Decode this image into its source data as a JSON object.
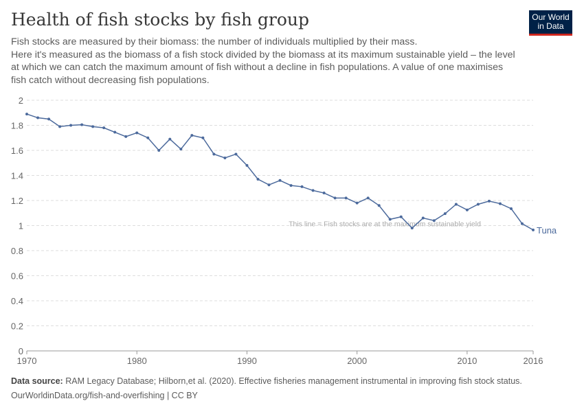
{
  "header": {
    "title": "Health of fish stocks by fish group",
    "subtitle": [
      "Fish stocks are measured by their biomass: the number of individuals multiplied by their mass.",
      "Here it's measured as the biomass of a fish stock divided by the biomass at its maximum sustainable yield – the level at which we can catch the maximum amount of fish without a decline in fish populations. A value of one maximises fish catch without decreasing fish populations."
    ],
    "logo": "Our World in Data"
  },
  "chart_data": {
    "type": "line",
    "title": "Health of fish stocks by fish group",
    "xlim": [
      1970,
      2016
    ],
    "ylim": [
      0,
      2
    ],
    "x_ticks": [
      1970,
      1980,
      1990,
      2000,
      2010,
      2016
    ],
    "y_ticks": [
      0,
      0.2,
      0.4,
      0.6,
      0.8,
      1,
      1.2,
      1.4,
      1.6,
      1.8,
      2
    ],
    "grid": "horizontal dashed",
    "annotation": "This line = Fish stocks are at the maximum sustainable yield",
    "series": [
      {
        "name": "Tuna",
        "color": "#4c6a9c",
        "x": [
          1970,
          1971,
          1972,
          1973,
          1974,
          1975,
          1976,
          1977,
          1978,
          1979,
          1980,
          1981,
          1982,
          1983,
          1984,
          1985,
          1986,
          1987,
          1988,
          1989,
          1990,
          1991,
          1992,
          1993,
          1994,
          1995,
          1996,
          1997,
          1998,
          1999,
          2000,
          2001,
          2002,
          2003,
          2004,
          2005,
          2006,
          2007,
          2008,
          2009,
          2010,
          2011,
          2012,
          2013,
          2014,
          2015,
          2016
        ],
        "values": [
          1.89,
          1.86,
          1.85,
          1.79,
          1.8,
          1.805,
          1.79,
          1.78,
          1.745,
          1.71,
          1.74,
          1.7,
          1.6,
          1.69,
          1.61,
          1.72,
          1.7,
          1.57,
          1.54,
          1.57,
          1.48,
          1.37,
          1.325,
          1.36,
          1.32,
          1.31,
          1.28,
          1.26,
          1.22,
          1.22,
          1.18,
          1.22,
          1.16,
          1.05,
          1.07,
          0.98,
          1.06,
          1.04,
          1.095,
          1.17,
          1.125,
          1.17,
          1.195,
          1.175,
          1.135,
          1.015,
          0.965
        ]
      }
    ]
  },
  "footer": {
    "source_label": "Data source:",
    "source": "RAM Legacy Database; Hilborn,et al. (2020). Effective fisheries management instrumental in improving fish stock status.",
    "link": "OurWorldinData.org/fish-and-overfishing | CC BY"
  }
}
